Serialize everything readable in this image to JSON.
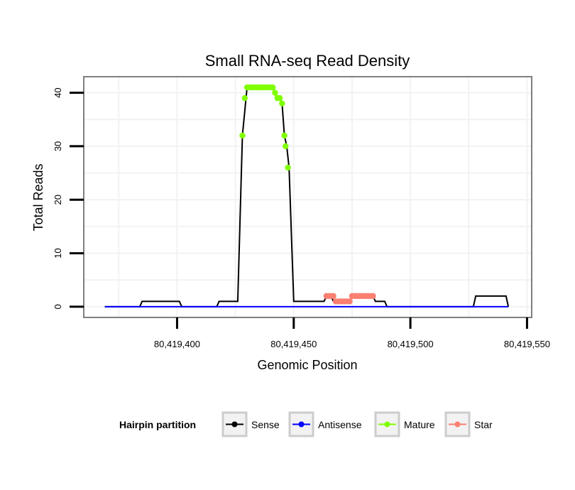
{
  "chart_data": {
    "type": "line",
    "title": "Small RNA-seq Read Density",
    "xlabel": "Genomic Position",
    "ylabel": "Total Reads",
    "xlim": [
      80419360,
      80419552
    ],
    "ylim": [
      -2,
      43
    ],
    "x_ticks": [
      80419400,
      80419450,
      80419500,
      80419550
    ],
    "x_tick_labels": [
      "80,419,400",
      "80,419,450",
      "80,419,500",
      "80,419,550"
    ],
    "y_ticks": [
      0,
      10,
      20,
      30,
      40
    ],
    "y_tick_labels": [
      "0",
      "10",
      "20",
      "30",
      "40"
    ],
    "grid": true,
    "legend": {
      "title": "Hairpin partition",
      "position": "bottom",
      "entries": [
        {
          "name": "Sense",
          "color": "#000000"
        },
        {
          "name": "Antisense",
          "color": "#0000ff"
        },
        {
          "name": "Mature",
          "color": "#7fff00"
        },
        {
          "name": "Star",
          "color": "#fa8072"
        }
      ]
    },
    "series": [
      {
        "name": "Sense",
        "color": "#000000",
        "style": "line",
        "x": [
          80419369,
          80419384,
          80419385,
          80419401,
          80419402,
          80419417,
          80419418,
          80419426,
          80419428,
          80419430,
          80419441,
          80419442,
          80419443,
          80419444,
          80419445,
          80419446,
          80419447,
          80419448,
          80419450,
          80419463,
          80419464,
          80419465,
          80419466,
          80419467,
          80419468,
          80419474,
          80419475,
          80419484,
          80419485,
          80419489,
          80419490,
          80419527,
          80419528,
          80419541,
          80419542
        ],
        "y": [
          0,
          0,
          1,
          1,
          0,
          0,
          1,
          1,
          32,
          41,
          41,
          40,
          39,
          39,
          38,
          32,
          30,
          26,
          1,
          1,
          2,
          2,
          2,
          1,
          1,
          1,
          2,
          2,
          1,
          1,
          0,
          0,
          2,
          2,
          0
        ]
      },
      {
        "name": "Antisense",
        "color": "#0000ff",
        "style": "line",
        "x": [
          80419369,
          80419542
        ],
        "y": [
          0,
          0
        ]
      },
      {
        "name": "Mature",
        "color": "#7fff00",
        "style": "points",
        "x": [
          80419428,
          80419429,
          80419430,
          80419431,
          80419432,
          80419433,
          80419434,
          80419435,
          80419436,
          80419437,
          80419438,
          80419439,
          80419440,
          80419441,
          80419442,
          80419443,
          80419444,
          80419445,
          80419446,
          80419446.5,
          80419447.5
        ],
        "y": [
          32,
          39,
          41,
          41,
          41,
          41,
          41,
          41,
          41,
          41,
          41,
          41,
          41,
          41,
          40,
          39,
          39,
          38,
          32,
          30,
          26
        ]
      },
      {
        "name": "Star",
        "color": "#fa8072",
        "style": "points",
        "x": [
          80419464,
          80419465,
          80419466,
          80419467,
          80419468,
          80419469,
          80419470,
          80419471,
          80419472,
          80419473,
          80419474,
          80419475,
          80419476,
          80419477,
          80419478,
          80419479,
          80419480,
          80419481,
          80419482,
          80419483,
          80419484
        ],
        "y": [
          2,
          2,
          2,
          2,
          1,
          1,
          1,
          1,
          1,
          1,
          1,
          2,
          2,
          2,
          2,
          2,
          2,
          2,
          2,
          2,
          2
        ]
      }
    ]
  }
}
